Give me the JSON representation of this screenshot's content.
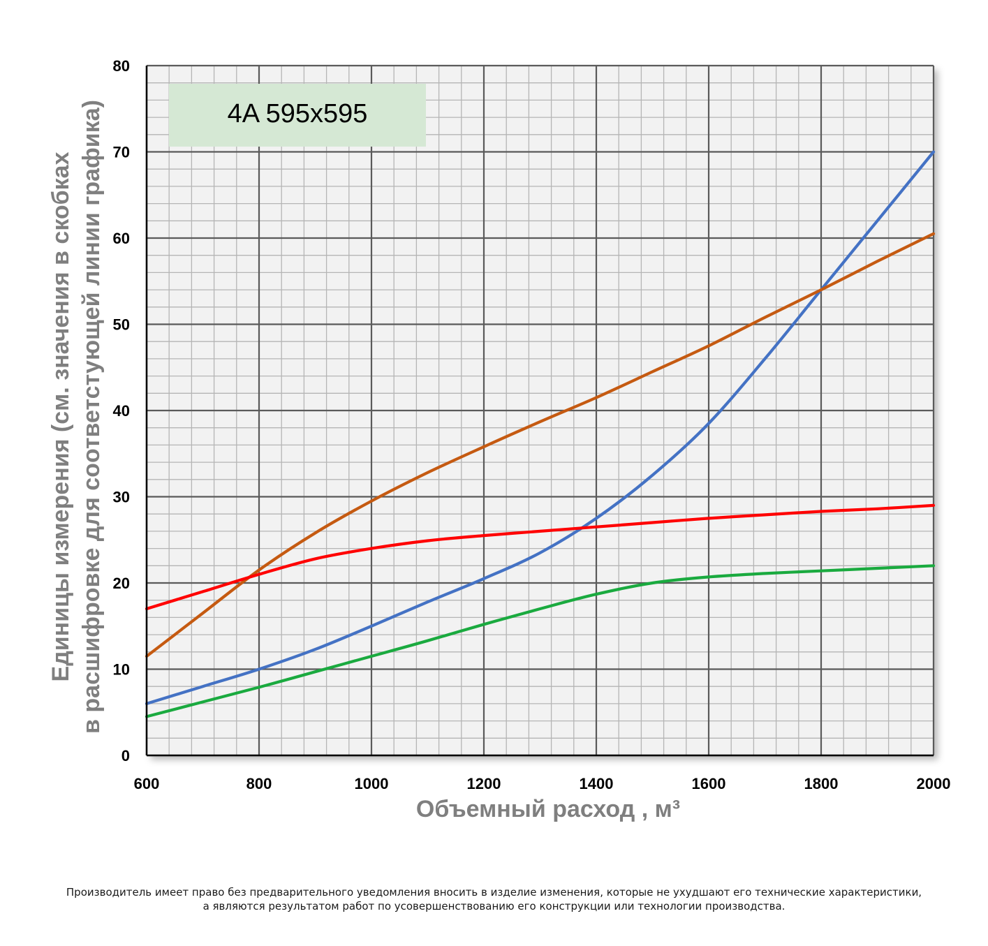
{
  "chart_data": {
    "type": "line",
    "title": "4A 595x595",
    "xlabel": "Объемный расход , м³",
    "ylabel_line1": "Единицы измерения (см. значения в скобках",
    "ylabel_line2": "в расшифровке для соответстующей линии графика)",
    "xlim": [
      600,
      2000
    ],
    "ylim": [
      0,
      80
    ],
    "xticks": [
      600,
      800,
      1000,
      1200,
      1400,
      1600,
      1800,
      2000
    ],
    "yticks": [
      0,
      10,
      20,
      30,
      40,
      50,
      60,
      70,
      80
    ],
    "grid": true,
    "series": [
      {
        "color": "#4472c4",
        "x": [
          600,
          700,
          800,
          900,
          1000,
          1100,
          1200,
          1300,
          1400,
          1500,
          1600,
          1700,
          1800,
          1900,
          2000
        ],
        "y": [
          6,
          8,
          10,
          12.3,
          15,
          17.8,
          20.5,
          23.5,
          27.5,
          32.5,
          38.5,
          46,
          54,
          62,
          70
        ]
      },
      {
        "color": "#c55a11",
        "x": [
          600,
          700,
          800,
          900,
          1000,
          1100,
          1200,
          1300,
          1400,
          1500,
          1600,
          1700,
          1800,
          1900,
          2000
        ],
        "y": [
          11.5,
          16.5,
          21.5,
          25.8,
          29.5,
          32.8,
          35.8,
          38.7,
          41.5,
          44.5,
          47.5,
          50.8,
          54,
          57.3,
          60.5
        ]
      },
      {
        "color": "#ff0000",
        "x": [
          600,
          700,
          800,
          900,
          1000,
          1100,
          1200,
          1300,
          1400,
          1500,
          1600,
          1700,
          1800,
          1900,
          2000
        ],
        "y": [
          17,
          19,
          21,
          22.8,
          24,
          24.9,
          25.5,
          26,
          26.5,
          27,
          27.5,
          27.9,
          28.3,
          28.6,
          29
        ]
      },
      {
        "color": "#1aaa3f",
        "x": [
          600,
          700,
          800,
          900,
          1000,
          1100,
          1200,
          1300,
          1400,
          1500,
          1600,
          1700,
          1800,
          1900,
          2000
        ],
        "y": [
          4.5,
          6.2,
          7.9,
          9.7,
          11.5,
          13.3,
          15.2,
          17,
          18.7,
          20,
          20.7,
          21.1,
          21.4,
          21.7,
          22
        ]
      }
    ]
  },
  "footnote": {
    "line1": "Производитель имеет право без предварительного уведомления вносить в изделие изменения, которые не ухудшают его технические характеристики,",
    "line2": "а являются результатом работ по усовершенствованию его конструкции или технологии производства."
  }
}
